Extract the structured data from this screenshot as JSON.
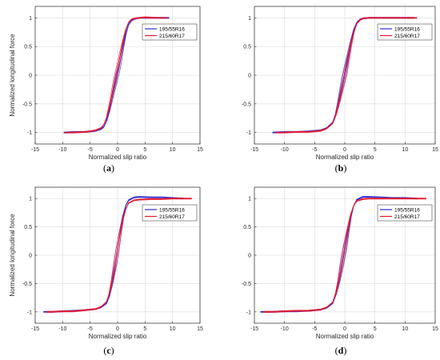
{
  "figure": {
    "panels_order": [
      "a",
      "b",
      "c",
      "d"
    ]
  },
  "chart_data": [
    {
      "panel": "a",
      "caption_letter": "a",
      "type": "line",
      "xlabel": "Normalized slip ratio",
      "ylabel": "Normalized longitudinal force",
      "xlim": [
        -15,
        15
      ],
      "ylim": [
        -1.2,
        1.2
      ],
      "xticks": [
        -15,
        -10,
        -5,
        0,
        5,
        10,
        15
      ],
      "yticks": [
        -1,
        -0.5,
        0,
        0.5,
        1
      ],
      "grid": true,
      "legend": "top-right",
      "series": [
        {
          "name": "195/55R16",
          "color": "#2a2ad4",
          "x": [
            -9.8,
            -8,
            -6,
            -5,
            -4,
            -3,
            -2.5,
            -2,
            -1.5,
            -1,
            -0.5,
            0,
            0.5,
            1,
            1.5,
            2,
            2.5,
            3,
            4,
            5,
            7,
            9.4
          ],
          "y": [
            -1.0,
            -0.99,
            -0.99,
            -0.98,
            -0.97,
            -0.94,
            -0.9,
            -0.8,
            -0.62,
            -0.4,
            -0.18,
            0.03,
            0.25,
            0.5,
            0.72,
            0.88,
            0.95,
            0.98,
            1.0,
            1.0,
            1.0,
            1.0
          ]
        },
        {
          "name": "215/60R17",
          "color": "#e8162a",
          "x": [
            -9.6,
            -8,
            -6,
            -5,
            -4,
            -3,
            -2.5,
            -2,
            -1.5,
            -1,
            -0.5,
            0,
            0.5,
            1,
            1.5,
            2,
            2.5,
            3,
            4,
            5,
            7,
            9.0
          ],
          "y": [
            -1.0,
            -1.0,
            -0.99,
            -0.98,
            -0.96,
            -0.92,
            -0.86,
            -0.74,
            -0.55,
            -0.33,
            -0.1,
            0.12,
            0.36,
            0.6,
            0.8,
            0.92,
            0.97,
            0.99,
            1.0,
            1.01,
            1.0,
            1.0
          ]
        }
      ]
    },
    {
      "panel": "b",
      "caption_letter": "b",
      "type": "line",
      "xlabel": "Normalized slip ratio",
      "ylabel": "",
      "xlim": [
        -15,
        15
      ],
      "ylim": [
        -1.2,
        1.2
      ],
      "xticks": [
        -15,
        -10,
        -5,
        0,
        5,
        10,
        15
      ],
      "yticks": [
        -1,
        -0.5,
        0,
        0.5,
        1
      ],
      "grid": true,
      "legend": "top-right",
      "series": [
        {
          "name": "195/55R16",
          "color": "#2a2ad4",
          "x": [
            -12,
            -10,
            -8,
            -6,
            -4,
            -3,
            -2,
            -1.5,
            -1,
            -0.5,
            0,
            0.5,
            1,
            1.5,
            2,
            2.5,
            3,
            4,
            6,
            8,
            10,
            11.5
          ],
          "y": [
            -1.0,
            -0.99,
            -0.99,
            -0.98,
            -0.96,
            -0.92,
            -0.82,
            -0.68,
            -0.45,
            -0.2,
            0.05,
            0.32,
            0.58,
            0.8,
            0.92,
            0.97,
            0.99,
            1.0,
            1.0,
            1.0,
            1.0,
            1.0
          ]
        },
        {
          "name": "215/60R17",
          "color": "#e8162a",
          "x": [
            -11.5,
            -10,
            -8,
            -6,
            -4,
            -3,
            -2,
            -1.5,
            -1,
            -0.5,
            0,
            0.5,
            1,
            1.5,
            2,
            2.5,
            3,
            4,
            6,
            8,
            10,
            12
          ],
          "y": [
            -1.0,
            -1.0,
            -0.99,
            -0.99,
            -0.97,
            -0.93,
            -0.84,
            -0.7,
            -0.5,
            -0.25,
            0.0,
            0.25,
            0.52,
            0.75,
            0.9,
            0.96,
            0.99,
            1.0,
            1.0,
            1.0,
            1.0,
            1.0
          ]
        }
      ]
    },
    {
      "panel": "c",
      "caption_letter": "c",
      "type": "line",
      "xlabel": "Normalized slip ratio",
      "ylabel": "Normalized longitudinal force",
      "xlim": [
        -15,
        15
      ],
      "ylim": [
        -1.2,
        1.2
      ],
      "xticks": [
        -15,
        -10,
        -5,
        0,
        5,
        10,
        15
      ],
      "yticks": [
        -1,
        -0.5,
        0,
        0.5,
        1
      ],
      "grid": true,
      "legend": "top-right",
      "series": [
        {
          "name": "195/55R16",
          "color": "#2a2ad4",
          "x": [
            -13.5,
            -12,
            -10,
            -8,
            -6,
            -4,
            -3,
            -2,
            -1.5,
            -1,
            -0.5,
            0,
            0.5,
            1,
            1.5,
            2,
            3,
            4,
            6,
            8,
            10,
            12
          ],
          "y": [
            -1.0,
            -1.0,
            -0.99,
            -0.98,
            -0.97,
            -0.95,
            -0.92,
            -0.85,
            -0.72,
            -0.5,
            -0.22,
            0.1,
            0.42,
            0.7,
            0.88,
            0.97,
            1.02,
            1.03,
            1.02,
            1.02,
            1.01,
            1.0
          ]
        },
        {
          "name": "215/60R17",
          "color": "#e8162a",
          "x": [
            -13,
            -12,
            -10,
            -8,
            -6,
            -4,
            -3,
            -2,
            -1.5,
            -1,
            -0.5,
            0,
            0.5,
            1,
            1.5,
            2,
            3,
            4,
            6,
            8,
            10,
            13.5
          ],
          "y": [
            -1.0,
            -1.0,
            -0.99,
            -0.99,
            -0.97,
            -0.95,
            -0.91,
            -0.82,
            -0.68,
            -0.45,
            -0.18,
            0.12,
            0.4,
            0.65,
            0.82,
            0.92,
            0.97,
            0.98,
            0.99,
            0.99,
            1.0,
            1.0
          ]
        }
      ]
    },
    {
      "panel": "d",
      "caption_letter": "d",
      "type": "line",
      "xlabel": "Normalized slip ratio",
      "ylabel": "",
      "xlim": [
        -15,
        15
      ],
      "ylim": [
        -1.2,
        1.2
      ],
      "xticks": [
        -15,
        -10,
        -5,
        0,
        5,
        10,
        15
      ],
      "yticks": [
        -1,
        -0.5,
        0,
        0.5,
        1
      ],
      "grid": true,
      "legend": "top-right",
      "series": [
        {
          "name": "195/55R16",
          "color": "#2a2ad4",
          "x": [
            -14,
            -12,
            -10,
            -8,
            -6,
            -4,
            -3,
            -2,
            -1.5,
            -1,
            -0.5,
            0,
            0.5,
            1,
            1.5,
            2,
            3,
            4,
            6,
            8,
            10,
            12
          ],
          "y": [
            -1.0,
            -1.0,
            -0.99,
            -0.99,
            -0.98,
            -0.96,
            -0.93,
            -0.85,
            -0.7,
            -0.48,
            -0.2,
            0.1,
            0.4,
            0.68,
            0.88,
            0.98,
            1.03,
            1.03,
            1.02,
            1.01,
            1.01,
            1.0
          ]
        },
        {
          "name": "215/60R17",
          "color": "#e8162a",
          "x": [
            -13.5,
            -12,
            -10,
            -8,
            -6,
            -4,
            -3,
            -2,
            -1.5,
            -1,
            -0.5,
            0,
            0.5,
            1,
            1.5,
            2,
            3,
            4,
            6,
            8,
            10,
            13.5
          ],
          "y": [
            -1.0,
            -1.0,
            -0.99,
            -0.98,
            -0.98,
            -0.96,
            -0.92,
            -0.83,
            -0.68,
            -0.45,
            -0.15,
            0.15,
            0.45,
            0.72,
            0.88,
            0.96,
            0.99,
            1.0,
            1.0,
            1.0,
            1.0,
            1.0
          ]
        }
      ]
    }
  ]
}
